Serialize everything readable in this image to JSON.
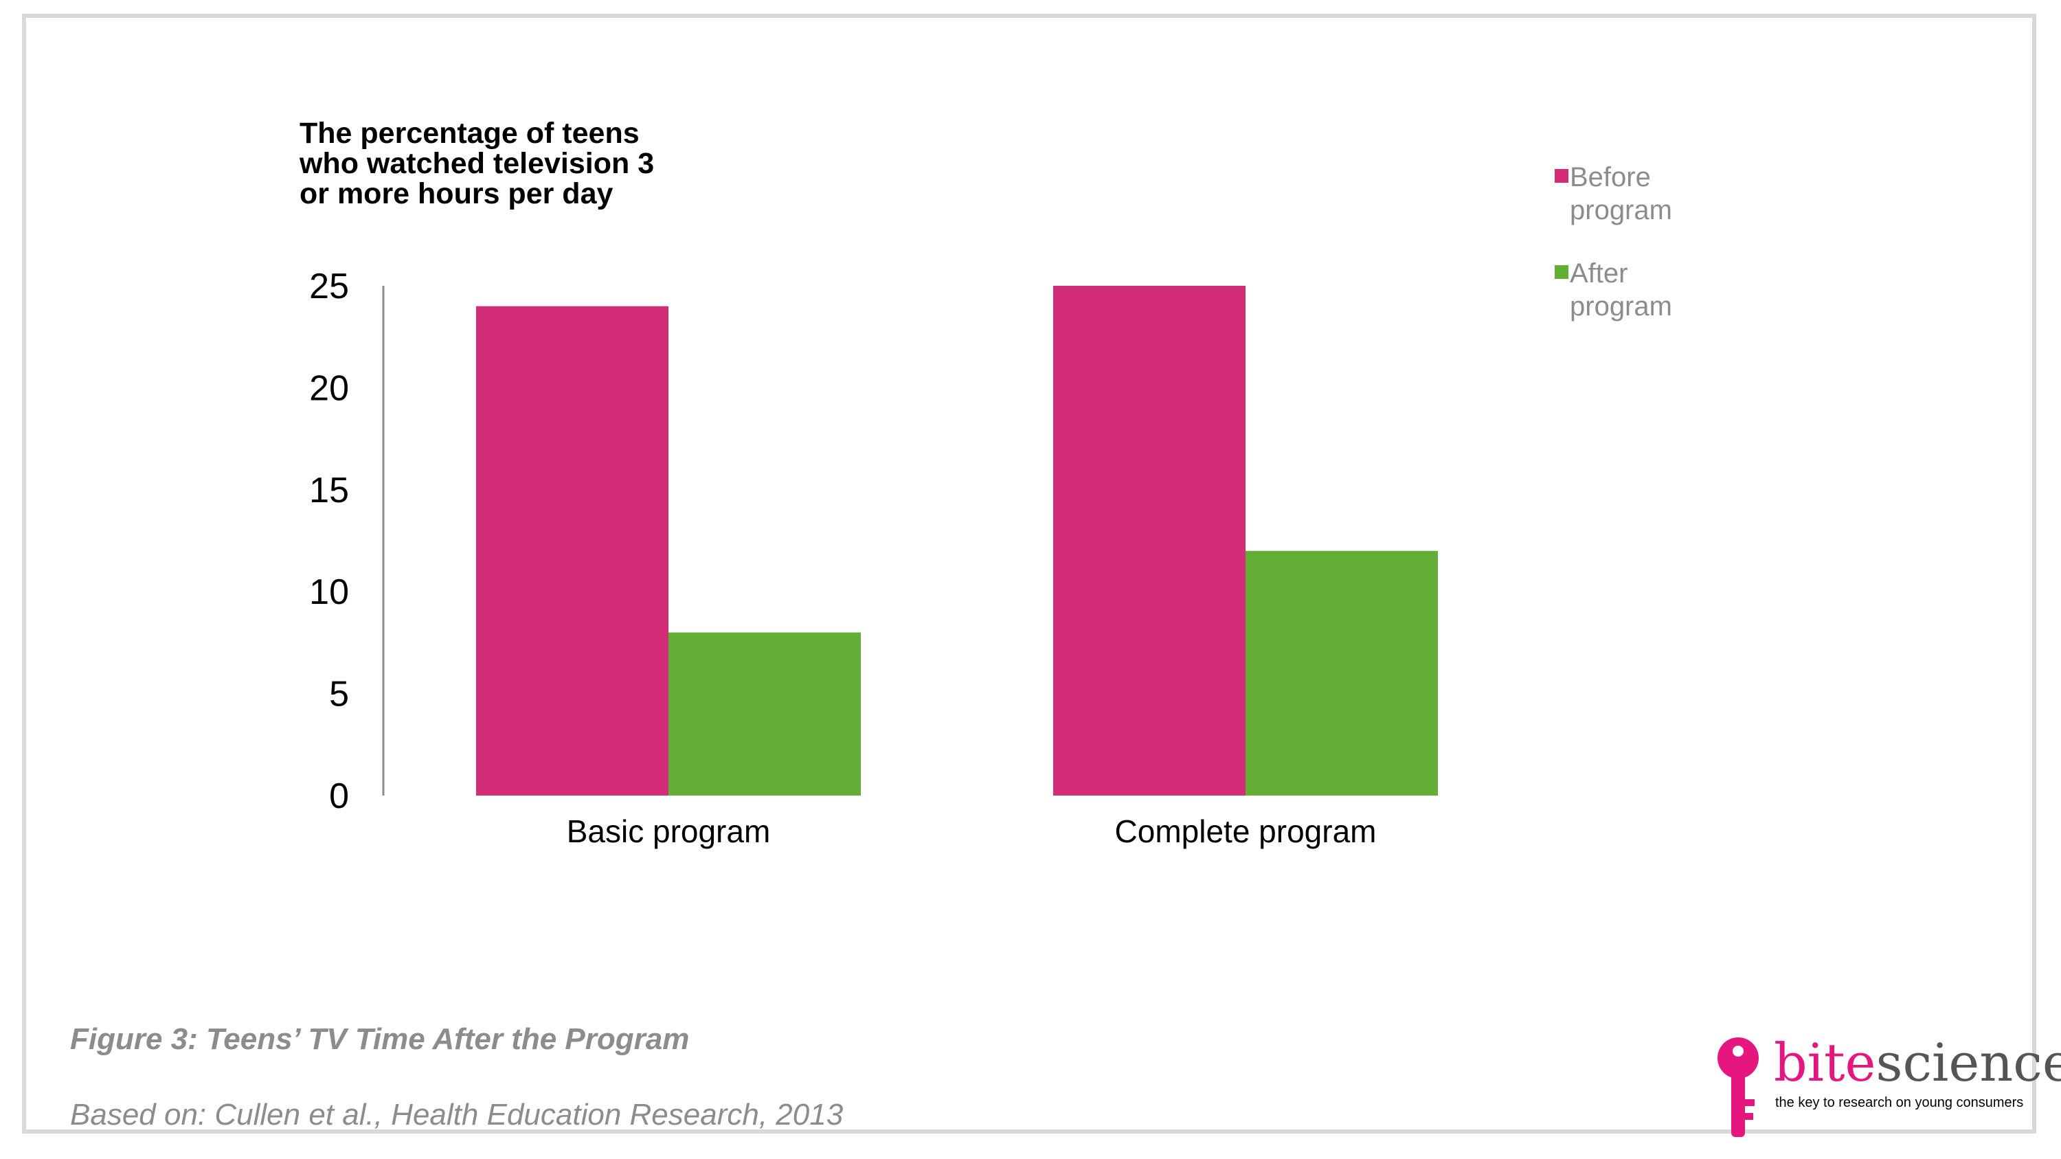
{
  "chart_data": {
    "type": "bar",
    "ylabel": "The percentage of teens who watched television 3 or more hours per day",
    "categories": [
      "Basic program",
      "Complete program"
    ],
    "series": [
      {
        "name": "Before program",
        "values": [
          24,
          25
        ],
        "color": "#d42d78"
      },
      {
        "name": "After program",
        "values": [
          8,
          12
        ],
        "color": "#63ae35"
      }
    ],
    "ylim": [
      0,
      25
    ],
    "yticks": [
      0,
      5,
      10,
      15,
      20,
      25
    ],
    "grid": false,
    "legend_position": "top-right"
  },
  "caption": "Figure 3: Teens’ TV Time After the Program",
  "source": "Based on: Cullen et al., Health Education Research, 2013",
  "logo": {
    "word_part1": "bite",
    "word_part2": "science",
    "tagline": "the key to research on young consumers",
    "brand_color": "#e5177e",
    "text_color": "#555555",
    "icon": "key-icon"
  }
}
